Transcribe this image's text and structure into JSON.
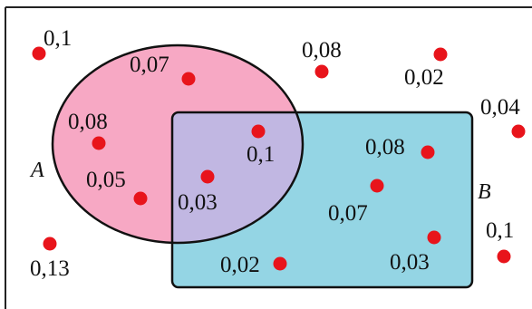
{
  "diagram": {
    "sets": {
      "a": {
        "name": "A",
        "fill": "#f7a8c4"
      },
      "b": {
        "name": "B",
        "fill": "#94d5e4"
      },
      "overlap_fill": "#c1b7e2"
    },
    "point_color": "#e8141b",
    "points": [
      {
        "label": "0,1"
      },
      {
        "label": "0,07"
      },
      {
        "label": "0,08"
      },
      {
        "label": "0,05"
      },
      {
        "label": "0,1"
      },
      {
        "label": "0,03"
      },
      {
        "label": "0,08"
      },
      {
        "label": "0,02"
      },
      {
        "label": "0,08"
      },
      {
        "label": "0,07"
      },
      {
        "label": "0,03"
      },
      {
        "label": "0,02"
      },
      {
        "label": "0,04"
      },
      {
        "label": "0,1"
      },
      {
        "label": "0,13"
      }
    ]
  }
}
